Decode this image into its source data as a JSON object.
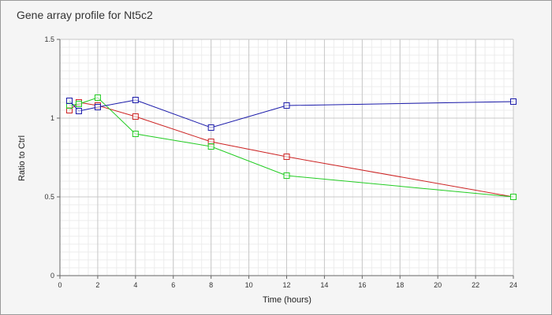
{
  "chart_data": {
    "type": "line",
    "title": "Gene array profile for Nt5c2",
    "xlabel": "Time (hours)",
    "ylabel": "Ratio to Ctrl",
    "xlim": [
      0,
      24
    ],
    "ylim": [
      0,
      1.5
    ],
    "x_ticks": [
      0,
      2,
      4,
      6,
      8,
      10,
      12,
      14,
      16,
      18,
      20,
      22,
      24
    ],
    "y_ticks": [
      0,
      0.5,
      1,
      1.5
    ],
    "y_tick_labels": [
      "0",
      "0.5",
      "1",
      "1.5"
    ],
    "grid": true,
    "legend": "none",
    "series": [
      {
        "color": "#cc2222",
        "x": [
          0.5,
          1,
          2,
          4,
          8,
          12,
          24
        ],
        "y": [
          1.05,
          1.1,
          1.08,
          1.01,
          0.85,
          0.755,
          0.5
        ]
      },
      {
        "color": "#22cc22",
        "x": [
          0.5,
          1,
          2,
          4,
          8,
          12,
          24
        ],
        "y": [
          1.08,
          1.09,
          1.13,
          0.9,
          0.82,
          0.635,
          0.5
        ]
      },
      {
        "color": "#1a1aaa",
        "x": [
          0.5,
          1,
          2,
          4,
          8,
          12,
          24
        ],
        "y": [
          1.11,
          1.045,
          1.07,
          1.115,
          0.94,
          1.08,
          1.105
        ]
      }
    ]
  }
}
